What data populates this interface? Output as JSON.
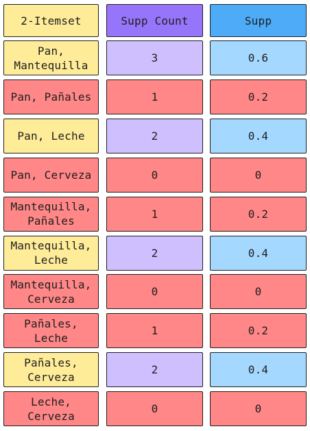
{
  "headers": {
    "itemset": "2-Itemset",
    "count": "Supp Count",
    "supp": "Supp"
  },
  "colors": {
    "header_itemset": "#ffec99",
    "header_count": "#9775fa",
    "header_supp": "#4dabf7",
    "frequent_itemset": "#ffec99",
    "frequent_count": "#d0bfff",
    "frequent_supp": "#a5d8ff",
    "infrequent": "#ff8787",
    "border": "#1e1e1e"
  },
  "rows": [
    {
      "itemset": "Pan,\nMantequilla",
      "count": "3",
      "supp": "0.6",
      "frequent": true
    },
    {
      "itemset": "Pan, Pañales",
      "count": "1",
      "supp": "0.2",
      "frequent": false
    },
    {
      "itemset": "Pan, Leche",
      "count": "2",
      "supp": "0.4",
      "frequent": true
    },
    {
      "itemset": "Pan, Cerveza",
      "count": "0",
      "supp": "0",
      "frequent": false
    },
    {
      "itemset": "Mantequilla,\nPañales",
      "count": "1",
      "supp": "0.2",
      "frequent": false
    },
    {
      "itemset": "Mantequilla,\nLeche",
      "count": "2",
      "supp": "0.4",
      "frequent": true
    },
    {
      "itemset": "Mantequilla,\nCerveza",
      "count": "0",
      "supp": "0",
      "frequent": false
    },
    {
      "itemset": "Pañales,\nLeche",
      "count": "1",
      "supp": "0.2",
      "frequent": false
    },
    {
      "itemset": "Pañales,\nCerveza",
      "count": "2",
      "supp": "0.4",
      "frequent": true
    },
    {
      "itemset": "Leche,\nCerveza",
      "count": "0",
      "supp": "0",
      "frequent": false
    }
  ]
}
